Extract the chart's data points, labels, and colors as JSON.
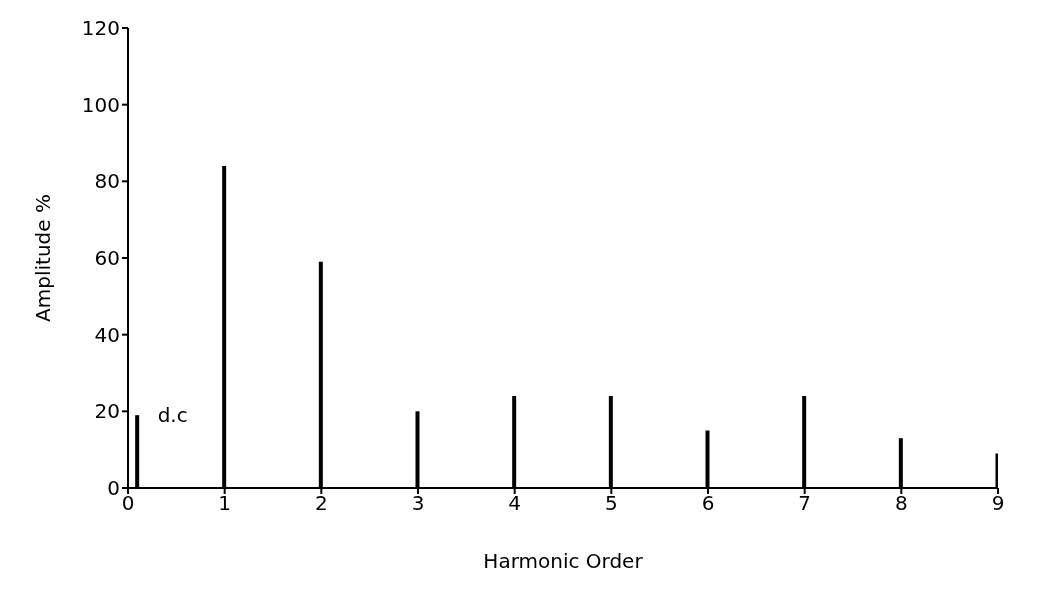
{
  "chart_data": {
    "type": "bar",
    "xlabel": "Harmonic Order",
    "ylabel": "Amplitude %",
    "x": [
      0.1,
      1,
      2,
      3,
      4,
      5,
      6,
      7,
      8,
      9
    ],
    "values": [
      19,
      84,
      59,
      20,
      24,
      24,
      15,
      24,
      13,
      9
    ],
    "color": "#000000",
    "xlim": [
      0,
      9
    ],
    "xticks": [
      0,
      1,
      2,
      3,
      4,
      5,
      6,
      7,
      8,
      9
    ],
    "ylim": [
      0,
      120
    ],
    "yticks": [
      0,
      20,
      40,
      60,
      80,
      100,
      120
    ],
    "annotations": [
      {
        "text": "d.c",
        "x": 0.1,
        "y": 19
      }
    ]
  }
}
